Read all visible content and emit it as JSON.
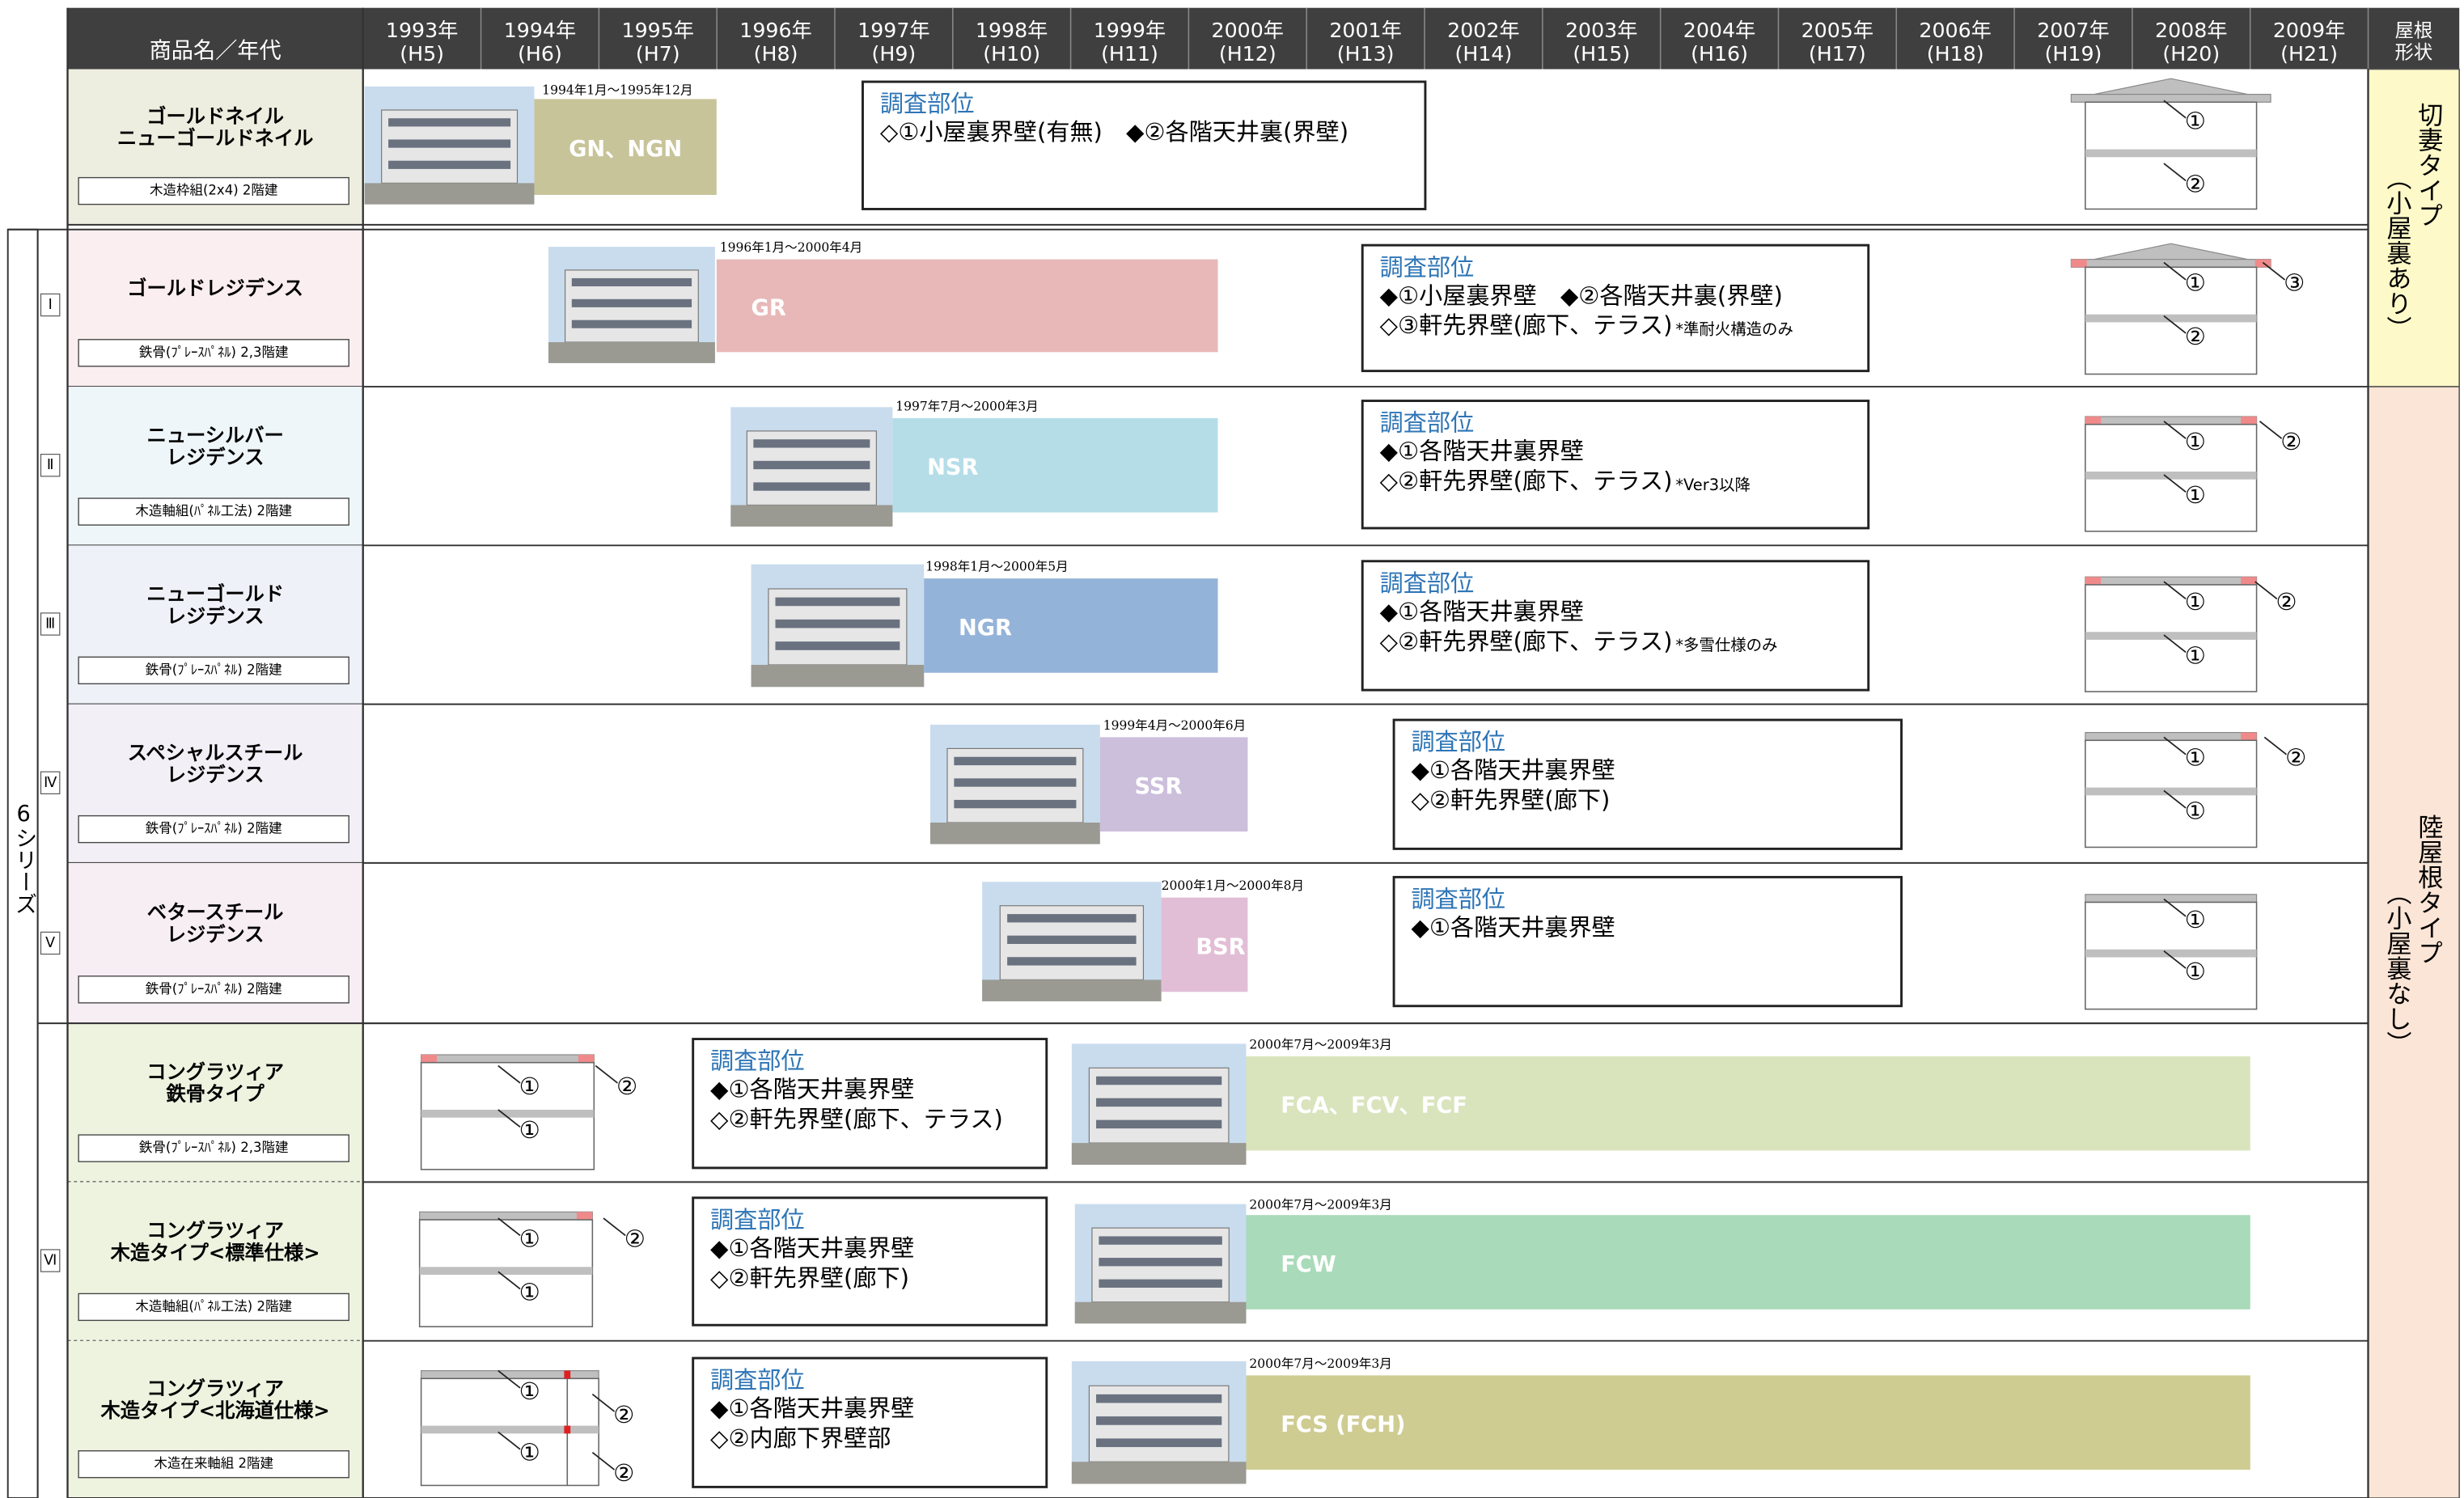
{
  "header": {
    "name_col": "商品名／年代",
    "years": [
      {
        "year": "1993年",
        "era": "(H5)"
      },
      {
        "year": "1994年",
        "era": "(H6)"
      },
      {
        "year": "1995年",
        "era": "(H7)"
      },
      {
        "year": "1996年",
        "era": "(H8)"
      },
      {
        "year": "1997年",
        "era": "(H9)"
      },
      {
        "year": "1998年",
        "era": "(H10)"
      },
      {
        "year": "1999年",
        "era": "(H11)"
      },
      {
        "year": "2000年",
        "era": "(H12)"
      },
      {
        "year": "2001年",
        "era": "(H13)"
      },
      {
        "year": "2002年",
        "era": "(H14)"
      },
      {
        "year": "2003年",
        "era": "(H15)"
      },
      {
        "year": "2004年",
        "era": "(H16)"
      },
      {
        "year": "2005年",
        "era": "(H17)"
      },
      {
        "year": "2006年",
        "era": "(H18)"
      },
      {
        "year": "2007年",
        "era": "(H19)"
      },
      {
        "year": "2008年",
        "era": "(H20)"
      },
      {
        "year": "2009年",
        "era": "(H21)"
      }
    ],
    "roof_col": [
      "屋根",
      "形状"
    ]
  },
  "roof_types": [
    {
      "lines": [
        "切妻タイプ",
        "（小屋裏あり）"
      ]
    },
    {
      "lines": [
        "陸屋根タイプ",
        "（小屋裏なし）"
      ]
    }
  ],
  "series_label": "6シリーズ",
  "numerals": [
    "Ⅰ",
    "Ⅱ",
    "Ⅲ",
    "Ⅳ",
    "Ⅴ",
    "Ⅵ"
  ],
  "rows": [
    {
      "name": [
        "ゴールドネイル",
        "ニューゴールドネイル"
      ],
      "spec": "木造枠組(2x4) 2階建",
      "period": "1994年1月～1995年12月",
      "bar": "GN、NGN",
      "survey": {
        "title": "調査部位",
        "items": [
          {
            "text": "◇①小屋裏界壁(有無)　◆②各階天井裏(界壁)"
          }
        ]
      },
      "diagram": [
        "①",
        "②"
      ]
    },
    {
      "name": [
        "ゴールドレジデンス"
      ],
      "spec": "鉄骨(ﾌﾟﾚｰｽﾊﾟﾈﾙ) 2,3階建",
      "period": "1996年1月～2000年4月",
      "bar": "GR",
      "survey": {
        "title": "調査部位",
        "items": [
          {
            "text": "◆①小屋裏界壁　◆②各階天井裏(界壁)"
          },
          {
            "text": "◇③軒先界壁(廊下、テラス)",
            "note": "*準耐火構造のみ"
          }
        ]
      },
      "diagram": [
        "①",
        "③",
        "②"
      ]
    },
    {
      "name": [
        "ニューシルバー",
        "レジデンス"
      ],
      "spec": "木造軸組(ﾊﾟﾈﾙ工法) 2階建",
      "period": "1997年7月～2000年3月",
      "bar": "NSR",
      "survey": {
        "title": "調査部位",
        "items": [
          {
            "text": "◆①各階天井裏界壁"
          },
          {
            "text": "◇②軒先界壁(廊下、テラス)",
            "note": "*Ver3以降"
          }
        ]
      },
      "diagram": [
        "①",
        "②",
        "①"
      ]
    },
    {
      "name": [
        "ニューゴールド",
        "レジデンス"
      ],
      "spec": "鉄骨(ﾌﾟﾚｰｽﾊﾟﾈﾙ) 2階建",
      "period": "1998年1月～2000年5月",
      "bar": "NGR",
      "survey": {
        "title": "調査部位",
        "items": [
          {
            "text": "◆①各階天井裏界壁"
          },
          {
            "text": "◇②軒先界壁(廊下、テラス)",
            "note": "*多雪仕様のみ"
          }
        ]
      },
      "diagram": [
        "①",
        "②",
        "①"
      ]
    },
    {
      "name": [
        "スペシャルスチール",
        "レジデンス"
      ],
      "spec": "鉄骨(ﾌﾟﾚｰｽﾊﾟﾈﾙ) 2階建",
      "period": "1999年4月～2000年6月",
      "bar": "SSR",
      "survey": {
        "title": "調査部位",
        "items": [
          {
            "text": "◆①各階天井裏界壁"
          },
          {
            "text": "◇②軒先界壁(廊下)"
          }
        ]
      },
      "diagram": [
        "①",
        "②",
        "①"
      ]
    },
    {
      "name": [
        "ベタースチール",
        "レジデンス"
      ],
      "spec": "鉄骨(ﾌﾟﾚｰｽﾊﾟﾈﾙ) 2階建",
      "period": "2000年1月～2000年8月",
      "bar": "BSR",
      "survey": {
        "title": "調査部位",
        "items": [
          {
            "text": "◆①各階天井裏界壁"
          }
        ]
      },
      "diagram": [
        "①",
        "①"
      ]
    },
    {
      "name": [
        "コングラツィア",
        "鉄骨タイプ"
      ],
      "spec": "鉄骨(ﾌﾟﾚｰｽﾊﾟﾈﾙ) 2,3階建",
      "period": "2000年7月～2009年3月",
      "bar": "FCA、FCV、FCF",
      "survey": {
        "title": "調査部位",
        "items": [
          {
            "text": "◆①各階天井裏界壁"
          },
          {
            "text": "◇②軒先界壁(廊下、テラス)"
          }
        ]
      },
      "diagram": [
        "①",
        "②",
        "①"
      ]
    },
    {
      "name": [
        "コングラツィア",
        "木造タイプ<標準仕様>"
      ],
      "spec": "木造軸組(ﾊﾟﾈﾙ工法) 2階建",
      "period": "2000年7月～2009年3月",
      "bar": "FCW",
      "survey": {
        "title": "調査部位",
        "items": [
          {
            "text": "◆①各階天井裏界壁"
          },
          {
            "text": "◇②軒先界壁(廊下)"
          }
        ]
      },
      "diagram": [
        "①",
        "②",
        "①"
      ]
    },
    {
      "name": [
        "コングラツィア",
        "木造タイプ<北海道仕様>"
      ],
      "spec": "木造在来軸組 2階建",
      "period": "2000年7月～2009年3月",
      "bar": "FCS (FCH)",
      "survey": {
        "title": "調査部位",
        "items": [
          {
            "text": "◆①各階天井裏界壁"
          },
          {
            "text": "◇②内廊下界壁部"
          }
        ]
      },
      "diagram": [
        "①",
        "②",
        "①",
        "②"
      ]
    }
  ]
}
